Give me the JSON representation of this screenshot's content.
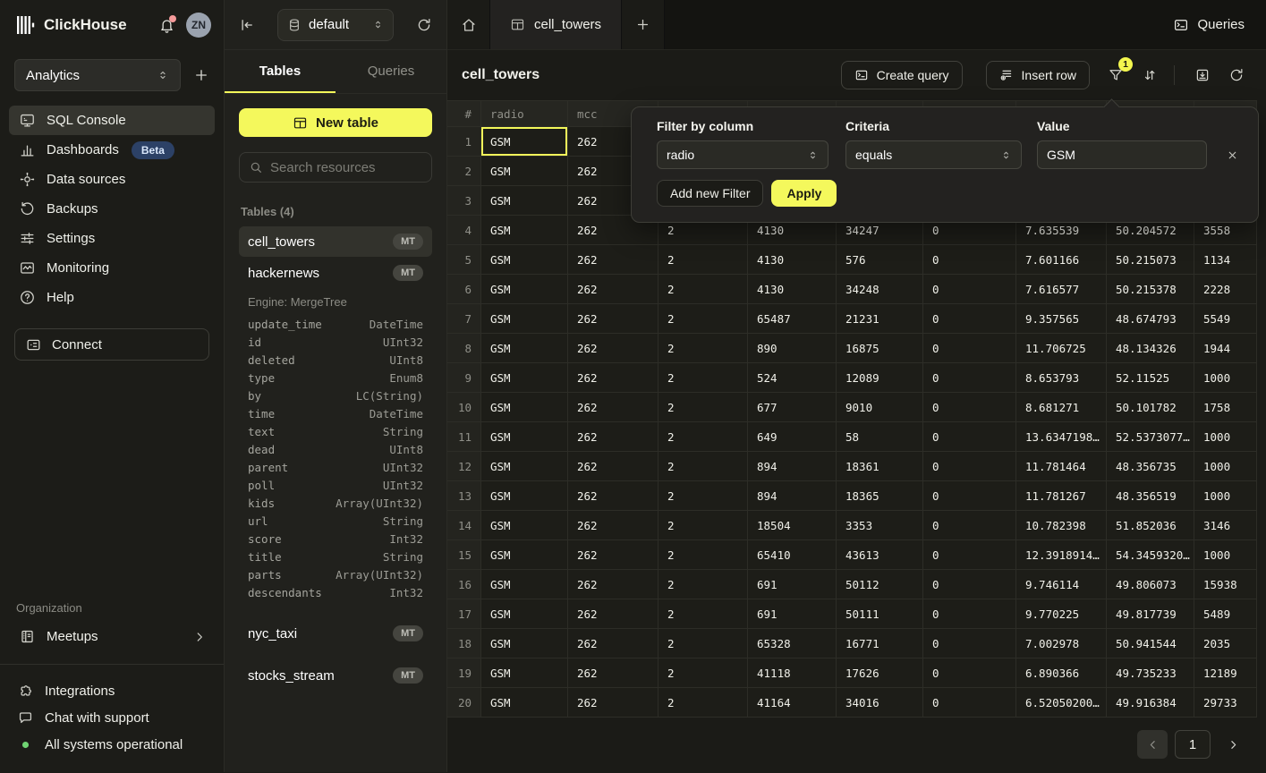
{
  "colors": {
    "accent_yellow": "#f4f85c",
    "selection_yellow": "#f3f75a",
    "beta_badge_bg": "#2c4166",
    "status_green": "#6fd372",
    "notification_red": "#f59a9a"
  },
  "sidebar": {
    "brand": "ClickHouse",
    "avatar": "ZN",
    "workspace": {
      "value": "Analytics"
    },
    "nav": [
      {
        "label": "SQL Console",
        "icon": "console-icon",
        "active": true
      },
      {
        "label": "Dashboards",
        "icon": "dashboards-icon",
        "badge": "Beta"
      },
      {
        "label": "Data sources",
        "icon": "data-sources-icon"
      },
      {
        "label": "Backups",
        "icon": "backups-icon"
      },
      {
        "label": "Settings",
        "icon": "settings-icon"
      },
      {
        "label": "Monitoring",
        "icon": "monitoring-icon"
      },
      {
        "label": "Help",
        "icon": "help-icon"
      }
    ],
    "connect_label": "Connect",
    "organization": {
      "label": "Organization",
      "items": [
        {
          "label": "Meetups",
          "icon": "meetups-icon"
        }
      ]
    },
    "footer": [
      {
        "label": "Integrations",
        "icon": "integrations-icon"
      },
      {
        "label": "Chat with support",
        "icon": "chat-icon"
      },
      {
        "label": "All systems operational",
        "icon": "status-dot"
      }
    ]
  },
  "tables_panel": {
    "database": "default",
    "tabs": [
      "Tables",
      "Queries"
    ],
    "new_table_label": "New table",
    "search_placeholder": "Search resources",
    "section_label": "Tables (4)",
    "engine_label": "Engine: MergeTree",
    "tables": [
      {
        "name": "cell_towers",
        "badge": "MT",
        "selected": true
      },
      {
        "name": "hackernews",
        "badge": "MT",
        "expanded": true
      },
      {
        "name": "nyc_taxi",
        "badge": "MT"
      },
      {
        "name": "stocks_stream",
        "badge": "MT"
      }
    ],
    "schema": [
      [
        "update_time",
        "DateTime"
      ],
      [
        "id",
        "UInt32"
      ],
      [
        "deleted",
        "UInt8"
      ],
      [
        "type",
        "Enum8"
      ],
      [
        "by",
        "LC(String)"
      ],
      [
        "time",
        "DateTime"
      ],
      [
        "text",
        "String"
      ],
      [
        "dead",
        "UInt8"
      ],
      [
        "parent",
        "UInt32"
      ],
      [
        "poll",
        "UInt32"
      ],
      [
        "kids",
        "Array(UInt32)"
      ],
      [
        "url",
        "String"
      ],
      [
        "score",
        "Int32"
      ],
      [
        "title",
        "String"
      ],
      [
        "parts",
        "Array(UInt32)"
      ],
      [
        "descendants",
        "Int32"
      ]
    ]
  },
  "main": {
    "tab_label": "cell_towers",
    "queries_button": "Queries",
    "toolbar": {
      "title": "cell_towers",
      "create_query": "Create query",
      "insert_row": "Insert row",
      "filter_badge": "1"
    },
    "table": {
      "headers": [
        "#",
        "radio",
        "mcc",
        "",
        "",
        "",
        "",
        "",
        "",
        ""
      ],
      "selected_cell": {
        "row_index": 0,
        "col_index": 0
      },
      "rows": [
        {
          "n": "1",
          "cells": [
            "GSM",
            "262",
            "",
            "",
            "",
            "",
            "",
            "",
            ""
          ]
        },
        {
          "n": "2",
          "cells": [
            "GSM",
            "262",
            "",
            "",
            "",
            "",
            "",
            "",
            ""
          ]
        },
        {
          "n": "3",
          "cells": [
            "GSM",
            "262",
            "",
            "",
            "",
            "",
            "",
            "",
            ""
          ]
        },
        {
          "n": "4",
          "cells": [
            "GSM",
            "262",
            "2",
            "4130",
            "34247",
            "0",
            "7.635539",
            "50.204572",
            "3558"
          ]
        },
        {
          "n": "5",
          "cells": [
            "GSM",
            "262",
            "2",
            "4130",
            "576",
            "0",
            "7.601166",
            "50.215073",
            "1134"
          ]
        },
        {
          "n": "6",
          "cells": [
            "GSM",
            "262",
            "2",
            "4130",
            "34248",
            "0",
            "7.616577",
            "50.215378",
            "2228"
          ]
        },
        {
          "n": "7",
          "cells": [
            "GSM",
            "262",
            "2",
            "65487",
            "21231",
            "0",
            "9.357565",
            "48.674793",
            "5549"
          ]
        },
        {
          "n": "8",
          "cells": [
            "GSM",
            "262",
            "2",
            "890",
            "16875",
            "0",
            "11.706725",
            "48.134326",
            "1944"
          ]
        },
        {
          "n": "9",
          "cells": [
            "GSM",
            "262",
            "2",
            "524",
            "12089",
            "0",
            "8.653793",
            "52.11525",
            "1000"
          ]
        },
        {
          "n": "10",
          "cells": [
            "GSM",
            "262",
            "2",
            "677",
            "9010",
            "0",
            "8.681271",
            "50.101782",
            "1758"
          ]
        },
        {
          "n": "11",
          "cells": [
            "GSM",
            "262",
            "2",
            "649",
            "58",
            "0",
            "13.6347198…",
            "52.5373077…",
            "1000"
          ]
        },
        {
          "n": "12",
          "cells": [
            "GSM",
            "262",
            "2",
            "894",
            "18361",
            "0",
            "11.781464",
            "48.356735",
            "1000"
          ]
        },
        {
          "n": "13",
          "cells": [
            "GSM",
            "262",
            "2",
            "894",
            "18365",
            "0",
            "11.781267",
            "48.356519",
            "1000"
          ]
        },
        {
          "n": "14",
          "cells": [
            "GSM",
            "262",
            "2",
            "18504",
            "3353",
            "0",
            "10.782398",
            "51.852036",
            "3146"
          ]
        },
        {
          "n": "15",
          "cells": [
            "GSM",
            "262",
            "2",
            "65410",
            "43613",
            "0",
            "12.3918914…",
            "54.3459320…",
            "1000"
          ]
        },
        {
          "n": "16",
          "cells": [
            "GSM",
            "262",
            "2",
            "691",
            "50112",
            "0",
            "9.746114",
            "49.806073",
            "15938"
          ]
        },
        {
          "n": "17",
          "cells": [
            "GSM",
            "262",
            "2",
            "691",
            "50111",
            "0",
            "9.770225",
            "49.817739",
            "5489"
          ]
        },
        {
          "n": "18",
          "cells": [
            "GSM",
            "262",
            "2",
            "65328",
            "16771",
            "0",
            "7.002978",
            "50.941544",
            "2035"
          ]
        },
        {
          "n": "19",
          "cells": [
            "GSM",
            "262",
            "2",
            "41118",
            "17626",
            "0",
            "6.890366",
            "49.735233",
            "12189"
          ]
        },
        {
          "n": "20",
          "cells": [
            "GSM",
            "262",
            "2",
            "41164",
            "34016",
            "0",
            "6.52050200…",
            "49.916384",
            "29733"
          ]
        }
      ]
    },
    "pagination": {
      "page": "1"
    }
  },
  "filter_popup": {
    "column_label": "Filter by column",
    "column_value": "radio",
    "criteria_label": "Criteria",
    "criteria_value": "equals",
    "value_label": "Value",
    "value": "GSM",
    "add_button": "Add new Filter",
    "apply_button": "Apply"
  }
}
